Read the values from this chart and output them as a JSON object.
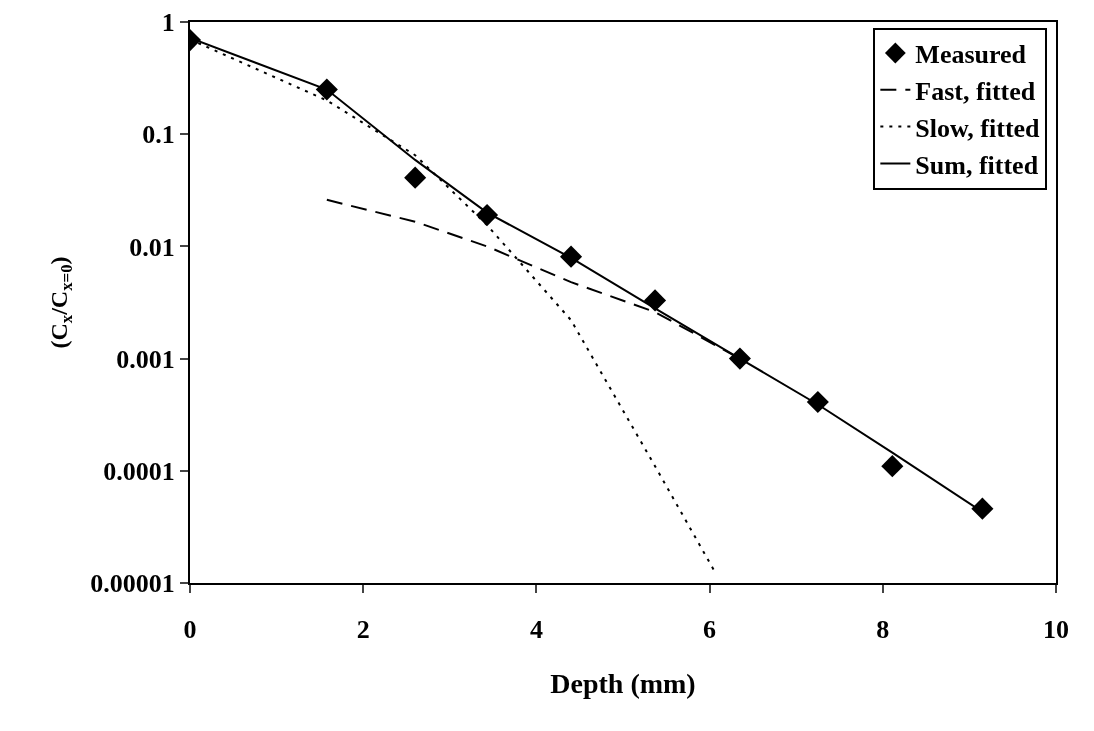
{
  "chart_data": {
    "type": "line",
    "xlabel": "Depth (mm)",
    "ylabel": "(C$_{x}$/C$_{x=0}$)",
    "log": "y",
    "grid": false,
    "legend": "top right",
    "xlim": [
      0,
      10
    ],
    "xticks": [
      0,
      2,
      4,
      6,
      8,
      10
    ],
    "ylim": [
      1e-05,
      1
    ],
    "yticks": [
      {
        "value": 1e-05,
        "label": "0.00001"
      },
      0.0001,
      0.001,
      0.01,
      0.1,
      1
    ],
    "series": [
      {
        "name": "Measured",
        "type": "scatter",
        "marker": "diamond",
        "color": "#000000",
        "x": [
          0,
          1.58,
          2.6,
          3.43,
          4.4,
          5.37,
          6.35,
          7.25,
          8.11,
          9.15
        ],
        "values": [
          0.69,
          0.25,
          0.041,
          0.019,
          0.0081,
          0.0033,
          0.001,
          0.00041,
          0.00011,
          4.6e-05
        ]
      },
      {
        "name": "Fast, fitted",
        "line_style": "dashed",
        "color": "#000000",
        "x": [
          1.58,
          2.6,
          3.43,
          4.4,
          5.37,
          6.35
        ],
        "values": [
          0.026,
          0.0166,
          0.01,
          0.0048,
          0.0026,
          0.001
        ]
      },
      {
        "name": "Slow, fitted",
        "line_style": "dotted",
        "color": "#000000",
        "x": [
          0,
          1.58,
          2.6,
          3.43,
          4.4,
          5.37,
          6.05
        ],
        "values": [
          0.7,
          0.2,
          0.065,
          0.0155,
          0.0022,
          0.00011,
          1.3e-05
        ]
      },
      {
        "name": "Sum, fitted",
        "line_style": "solid",
        "color": "#000000",
        "x": [
          0,
          1.58,
          2.6,
          3.43,
          4.4,
          5.37,
          6.35,
          7.25,
          8.11,
          9.15
        ],
        "values": [
          0.72,
          0.25,
          0.059,
          0.02,
          0.0079,
          0.0028,
          0.001,
          0.00039,
          0.000145,
          4.3e-05
        ]
      }
    ]
  }
}
